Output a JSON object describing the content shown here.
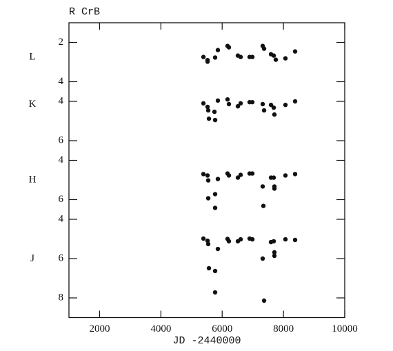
{
  "chart_data": {
    "type": "scatter",
    "title": "R CrB",
    "x_label": "JD -2440000",
    "xlim": [
      1000,
      10000
    ],
    "xticks": [
      2000,
      4000,
      6000,
      8000,
      10000
    ],
    "color": "#111111",
    "panels": [
      {
        "label": "L",
        "ylim": [
          4.5,
          1
        ],
        "yticks": [
          2,
          4
        ],
        "x": [
          5388,
          5523,
          5523,
          5770,
          5860,
          6175,
          6220,
          6513,
          6603,
          6895,
          6985,
          7323,
          7368,
          7593,
          7683,
          7750,
          8065,
          8380
        ],
        "y": [
          2.74,
          2.9,
          2.98,
          2.77,
          2.39,
          2.18,
          2.25,
          2.67,
          2.74,
          2.74,
          2.74,
          2.18,
          2.32,
          2.6,
          2.67,
          2.88,
          2.81,
          2.46
        ]
      },
      {
        "label": "K",
        "ylim": [
          6.5,
          3.5
        ],
        "yticks": [
          4,
          6
        ],
        "x": [
          5388,
          5523,
          5545,
          5568,
          5770,
          5748,
          5860,
          6175,
          6220,
          6513,
          6603,
          6895,
          6985,
          7323,
          7368,
          7593,
          7683,
          7705,
          8065,
          8380
        ],
        "y": [
          4.1,
          4.28,
          4.46,
          4.88,
          4.95,
          4.53,
          3.96,
          3.9,
          4.14,
          4.25,
          4.1,
          4.04,
          4.04,
          4.14,
          4.46,
          4.18,
          4.32,
          4.67,
          4.18,
          4.0
        ]
      },
      {
        "label": "H",
        "ylim": [
          6.5,
          3.5
        ],
        "yticks": [
          4,
          6
        ],
        "x": [
          5388,
          5523,
          5545,
          5545,
          5770,
          5770,
          5860,
          6175,
          6220,
          6513,
          6603,
          6895,
          6985,
          7323,
          7345,
          7593,
          7683,
          7705,
          7705,
          8065,
          8380
        ],
        "y": [
          4.7,
          4.77,
          5.02,
          5.93,
          5.72,
          6.42,
          4.95,
          4.67,
          4.77,
          4.88,
          4.74,
          4.67,
          4.67,
          5.33,
          6.32,
          4.88,
          4.88,
          5.33,
          5.44,
          4.77,
          4.7
        ]
      },
      {
        "label": "J",
        "ylim": [
          9,
          3.5
        ],
        "yticks": [
          4,
          6,
          8
        ],
        "x": [
          5388,
          5523,
          5545,
          5568,
          5770,
          5770,
          5860,
          6175,
          6220,
          6513,
          6603,
          6895,
          6985,
          7323,
          7368,
          7593,
          7683,
          7705,
          7705,
          8065,
          8380
        ],
        "y": [
          4.98,
          5.09,
          5.26,
          6.49,
          6.63,
          7.72,
          5.51,
          5.0,
          5.12,
          5.12,
          5.02,
          4.98,
          5.02,
          6.0,
          8.14,
          5.16,
          5.12,
          5.68,
          5.86,
          5.02,
          5.05
        ]
      }
    ]
  }
}
